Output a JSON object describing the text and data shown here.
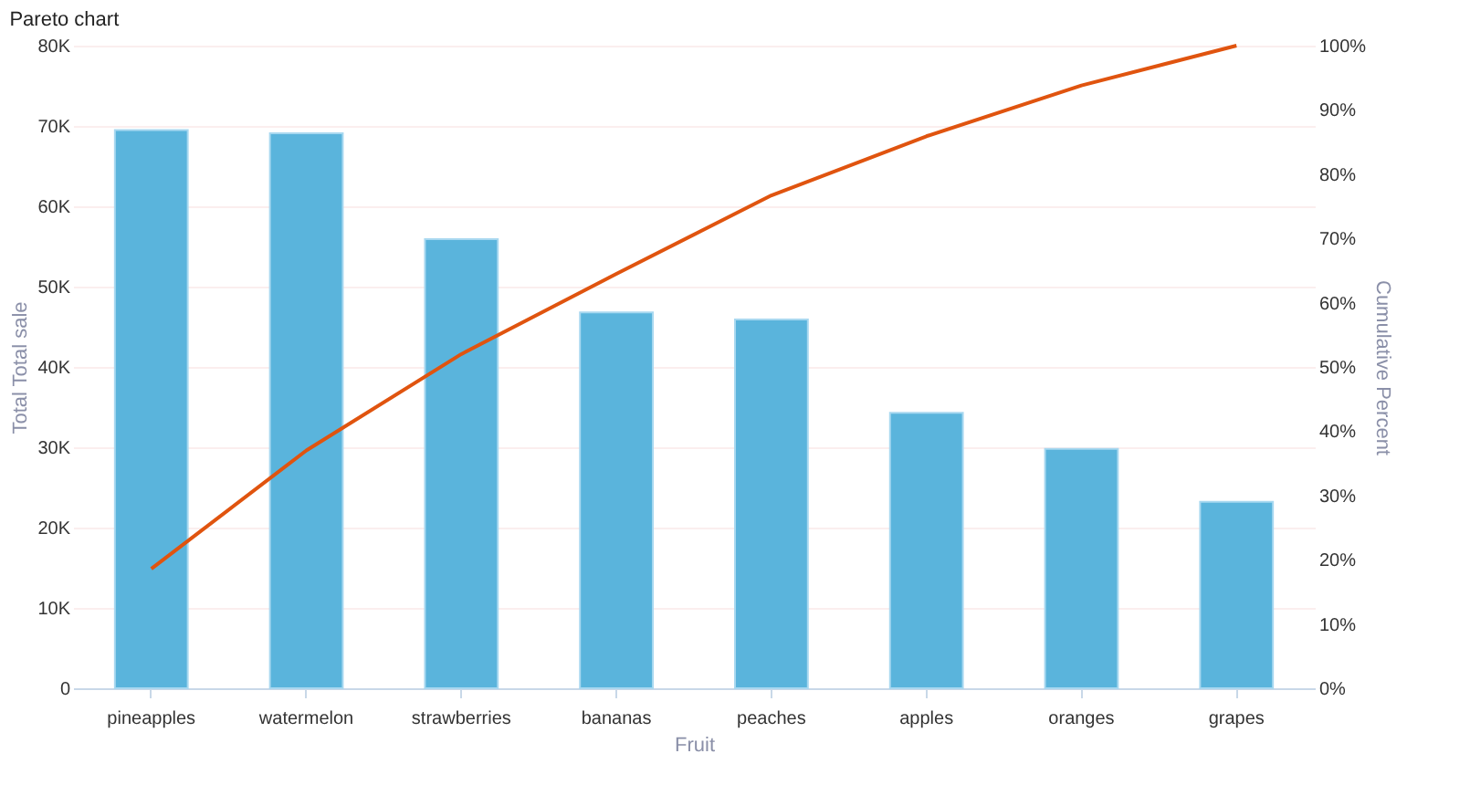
{
  "chart_data": {
    "type": "bar",
    "title": "Pareto chart",
    "xlabel": "Fruit",
    "ylabel": "Total Total sale",
    "y2label": "Cumulative Percent",
    "categories": [
      "pineapples",
      "watermelon",
      "strawberries",
      "bananas",
      "peaches",
      "apples",
      "oranges",
      "grapes"
    ],
    "series": [
      {
        "color": "#5ab4dc",
        "values": [
          69500,
          69100,
          55900,
          46800,
          45900,
          34300,
          29800,
          23200
        ]
      },
      {
        "type": "line",
        "axis": "y2",
        "color": "#e0540f",
        "values": [
          18.6,
          37.0,
          52.0,
          64.5,
          76.7,
          85.9,
          93.8,
          100
        ]
      }
    ],
    "ylim": [
      0,
      80000
    ],
    "yticks": [
      0,
      {
        "value": 10000,
        "label": "10K"
      },
      {
        "value": 20000,
        "label": "20K"
      },
      {
        "value": 30000,
        "label": "30K"
      },
      {
        "value": 40000,
        "label": "40K"
      },
      {
        "value": 50000,
        "label": "50K"
      },
      {
        "value": 60000,
        "label": "60K"
      },
      {
        "value": 70000,
        "label": "70K"
      },
      {
        "value": 80000,
        "label": "80K"
      }
    ],
    "y2lim": [
      0,
      100
    ],
    "y2ticks": [
      {
        "value": 0,
        "label": "0%"
      },
      {
        "value": 10,
        "label": "10%"
      },
      {
        "value": 20,
        "label": "20%"
      },
      {
        "value": 30,
        "label": "30%"
      },
      {
        "value": 40,
        "label": "40%"
      },
      {
        "value": 50,
        "label": "50%"
      },
      {
        "value": 60,
        "label": "60%"
      },
      {
        "value": 70,
        "label": "70%"
      },
      {
        "value": 80,
        "label": "80%"
      },
      {
        "value": 90,
        "label": "90%"
      },
      {
        "value": 100,
        "label": "100%"
      }
    ],
    "grid": "y",
    "marker": "none",
    "line_style": "solid"
  }
}
